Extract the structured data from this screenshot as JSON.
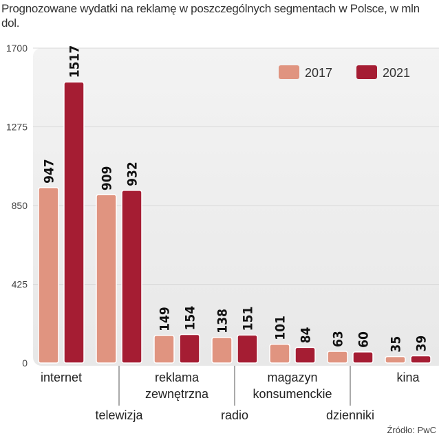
{
  "title": "Prognozowane wydatki na reklamę w poszczególnych segmentach w Polsce, w mln dol.",
  "source": "Źródło: PwC",
  "chart_data": {
    "type": "bar",
    "title": "Prognozowane wydatki na reklamę w poszczególnych segmentach w Polsce, w mln dol.",
    "categories": [
      "internet",
      "telewizja",
      "reklama zewnętrzna",
      "radio",
      "magazyn konsumenckie",
      "dzienniki",
      "kina"
    ],
    "series": [
      {
        "name": "2017",
        "color": "#e09480",
        "values": [
          947,
          909,
          149,
          138,
          101,
          63,
          35
        ]
      },
      {
        "name": "2021",
        "color": "#a51d33",
        "values": [
          1517,
          932,
          154,
          151,
          84,
          60,
          39
        ]
      }
    ],
    "yticks": [
      "0",
      "425",
      "850",
      "1275",
      "1700"
    ],
    "ylim": [
      0,
      1700
    ],
    "grid": true,
    "legend": "top-right",
    "xlabel": "",
    "ylabel": ""
  }
}
